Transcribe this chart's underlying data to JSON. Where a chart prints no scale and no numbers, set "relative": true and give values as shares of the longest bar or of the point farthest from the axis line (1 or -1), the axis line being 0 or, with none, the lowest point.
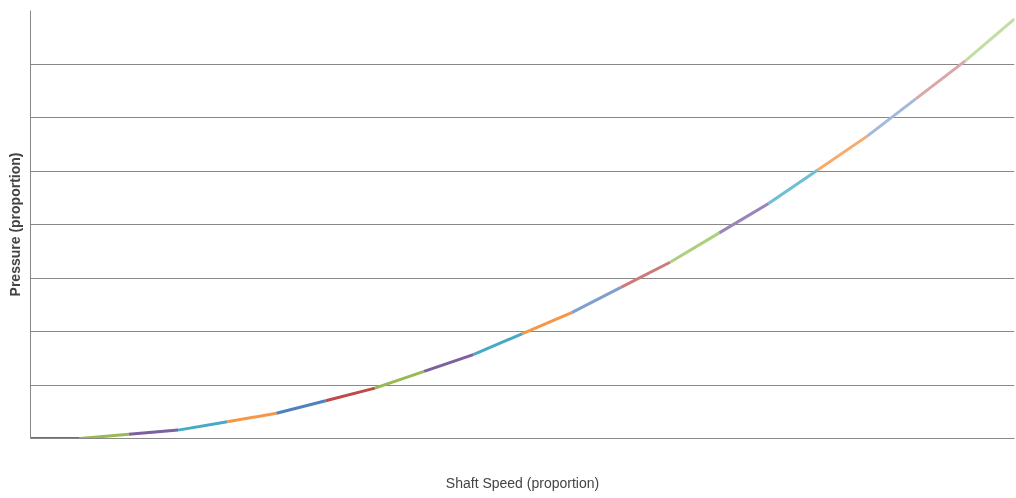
{
  "chart_data": {
    "type": "line",
    "relative": true,
    "xlabel": "Shaft Speed (proportion)",
    "ylabel": "Pressure (proportion)",
    "grid": "y",
    "marker": "none",
    "line_style": "solid",
    "categories": [
      null,
      null,
      null,
      null,
      null,
      null,
      null,
      null,
      null,
      null,
      null,
      null,
      null,
      null,
      null,
      null,
      null,
      null,
      null,
      null,
      null
    ],
    "series": [
      {
        "color": "#be4b48",
        "values": [
          0,
          0,
          null,
          null,
          null,
          null,
          null,
          null,
          null,
          null,
          null,
          null,
          null,
          null,
          null,
          null,
          null,
          null,
          null,
          null,
          null
        ]
      },
      {
        "color": "#98b954",
        "values": [
          null,
          0,
          0.01,
          null,
          null,
          null,
          null,
          null,
          null,
          null,
          null,
          null,
          null,
          null,
          null,
          null,
          null,
          null,
          null,
          null,
          null
        ]
      },
      {
        "color": "#7d60a0",
        "values": [
          null,
          null,
          0.01,
          0.02,
          null,
          null,
          null,
          null,
          null,
          null,
          null,
          null,
          null,
          null,
          null,
          null,
          null,
          null,
          null,
          null,
          null
        ]
      },
      {
        "color": "#46aac5",
        "values": [
          null,
          null,
          null,
          0.02,
          0.04,
          null,
          null,
          null,
          null,
          null,
          null,
          null,
          null,
          null,
          null,
          null,
          null,
          null,
          null,
          null,
          null
        ]
      },
      {
        "color": "#f79646",
        "values": [
          null,
          null,
          null,
          null,
          0.04,
          0.06,
          null,
          null,
          null,
          null,
          null,
          null,
          null,
          null,
          null,
          null,
          null,
          null,
          null,
          null,
          null
        ]
      },
      {
        "color": "#4f81bd",
        "values": [
          null,
          null,
          null,
          null,
          null,
          0.06,
          0.09,
          null,
          null,
          null,
          null,
          null,
          null,
          null,
          null,
          null,
          null,
          null,
          null,
          null,
          null
        ]
      },
      {
        "color": "#be4b48",
        "values": [
          null,
          null,
          null,
          null,
          null,
          null,
          0.09,
          0.12,
          null,
          null,
          null,
          null,
          null,
          null,
          null,
          null,
          null,
          null,
          null,
          null,
          null
        ]
      },
      {
        "color": "#98b954",
        "values": [
          null,
          null,
          null,
          null,
          null,
          null,
          null,
          0.12,
          0.16,
          null,
          null,
          null,
          null,
          null,
          null,
          null,
          null,
          null,
          null,
          null,
          null
        ]
      },
      {
        "color": "#7d60a0",
        "values": [
          null,
          null,
          null,
          null,
          null,
          null,
          null,
          null,
          0.16,
          0.2,
          null,
          null,
          null,
          null,
          null,
          null,
          null,
          null,
          null,
          null,
          null
        ]
      },
      {
        "color": "#46aac5",
        "values": [
          null,
          null,
          null,
          null,
          null,
          null,
          null,
          null,
          null,
          0.2,
          0.25,
          null,
          null,
          null,
          null,
          null,
          null,
          null,
          null,
          null,
          null
        ]
      },
      {
        "color": "#f79646",
        "values": [
          null,
          null,
          null,
          null,
          null,
          null,
          null,
          null,
          null,
          null,
          0.25,
          0.3,
          null,
          null,
          null,
          null,
          null,
          null,
          null,
          null,
          null
        ]
      },
      {
        "color": "#7f9fcf",
        "values": [
          null,
          null,
          null,
          null,
          null,
          null,
          null,
          null,
          null,
          null,
          null,
          0.3,
          0.36,
          null,
          null,
          null,
          null,
          null,
          null,
          null,
          null
        ]
      },
      {
        "color": "#cd7b79",
        "values": [
          null,
          null,
          null,
          null,
          null,
          null,
          null,
          null,
          null,
          null,
          null,
          null,
          0.36,
          0.42,
          null,
          null,
          null,
          null,
          null,
          null,
          null
        ]
      },
      {
        "color": "#add07f",
        "values": [
          null,
          null,
          null,
          null,
          null,
          null,
          null,
          null,
          null,
          null,
          null,
          null,
          null,
          0.42,
          0.49,
          null,
          null,
          null,
          null,
          null,
          null
        ]
      },
      {
        "color": "#9a85b7",
        "values": [
          null,
          null,
          null,
          null,
          null,
          null,
          null,
          null,
          null,
          null,
          null,
          null,
          null,
          null,
          0.49,
          0.56,
          null,
          null,
          null,
          null,
          null
        ]
      },
      {
        "color": "#6cbfd4",
        "values": [
          null,
          null,
          null,
          null,
          null,
          null,
          null,
          null,
          null,
          null,
          null,
          null,
          null,
          null,
          null,
          0.56,
          0.64,
          null,
          null,
          null,
          null
        ]
      },
      {
        "color": "#f9ab6c",
        "values": [
          null,
          null,
          null,
          null,
          null,
          null,
          null,
          null,
          null,
          null,
          null,
          null,
          null,
          null,
          null,
          null,
          0.64,
          0.72,
          null,
          null,
          null
        ]
      },
      {
        "color": "#a3b8da",
        "values": [
          null,
          null,
          null,
          null,
          null,
          null,
          null,
          null,
          null,
          null,
          null,
          null,
          null,
          null,
          null,
          null,
          null,
          0.72,
          0.81,
          null,
          null
        ]
      },
      {
        "color": "#dba6a5",
        "values": [
          null,
          null,
          null,
          null,
          null,
          null,
          null,
          null,
          null,
          null,
          null,
          null,
          null,
          null,
          null,
          null,
          null,
          null,
          0.81,
          0.9,
          null
        ]
      },
      {
        "color": "#c4dca5",
        "values": [
          null,
          null,
          null,
          null,
          null,
          null,
          null,
          null,
          null,
          null,
          null,
          null,
          null,
          null,
          null,
          null,
          null,
          null,
          null,
          0.9,
          1
        ]
      }
    ]
  }
}
